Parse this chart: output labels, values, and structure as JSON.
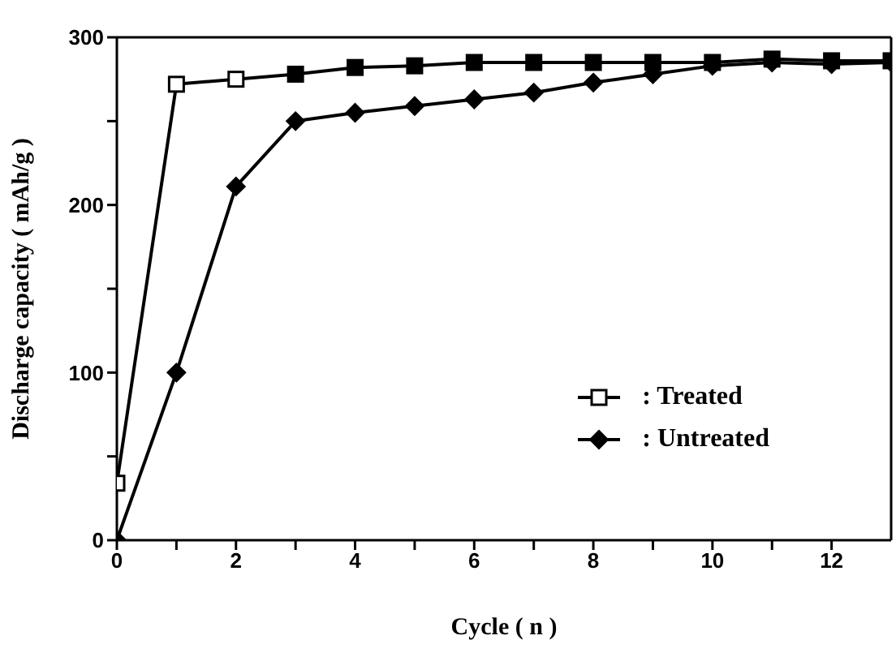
{
  "chart_data": {
    "type": "line",
    "xlabel": "Cycle ( n )",
    "ylabel": "Discharge capacity ( mAh/g )",
    "x": [
      0,
      1,
      2,
      3,
      4,
      5,
      6,
      7,
      8,
      9,
      10,
      11,
      12,
      13
    ],
    "series": [
      {
        "name": ": Treated",
        "color": "#000000",
        "marker": "square",
        "values": [
          34,
          272,
          275,
          278,
          282,
          283,
          285,
          285,
          285,
          285,
          285,
          287,
          286,
          286
        ]
      },
      {
        "name": ": Untreated",
        "color": "#000000",
        "marker": "diamond",
        "values": [
          0,
          100,
          211,
          250,
          255,
          259,
          263,
          267,
          273,
          278,
          283,
          285,
          284,
          285
        ]
      }
    ],
    "xlim": [
      0,
      13
    ],
    "xticks": [
      0,
      {
        "value": 1,
        "label": null
      },
      2,
      {
        "value": 3,
        "label": null
      },
      4,
      {
        "value": 5,
        "label": null
      },
      6,
      {
        "value": 7,
        "label": null
      },
      8,
      {
        "value": 9,
        "label": null
      },
      10,
      {
        "value": 11,
        "label": null
      },
      12
    ],
    "ylim": [
      0,
      300
    ],
    "yticks": [
      0,
      {
        "value": 50,
        "label": null
      },
      100,
      {
        "value": 150,
        "label": null
      },
      200,
      {
        "value": 250,
        "label": null
      },
      300
    ],
    "grid": false,
    "legend": "right",
    "line_style": "solid"
  }
}
